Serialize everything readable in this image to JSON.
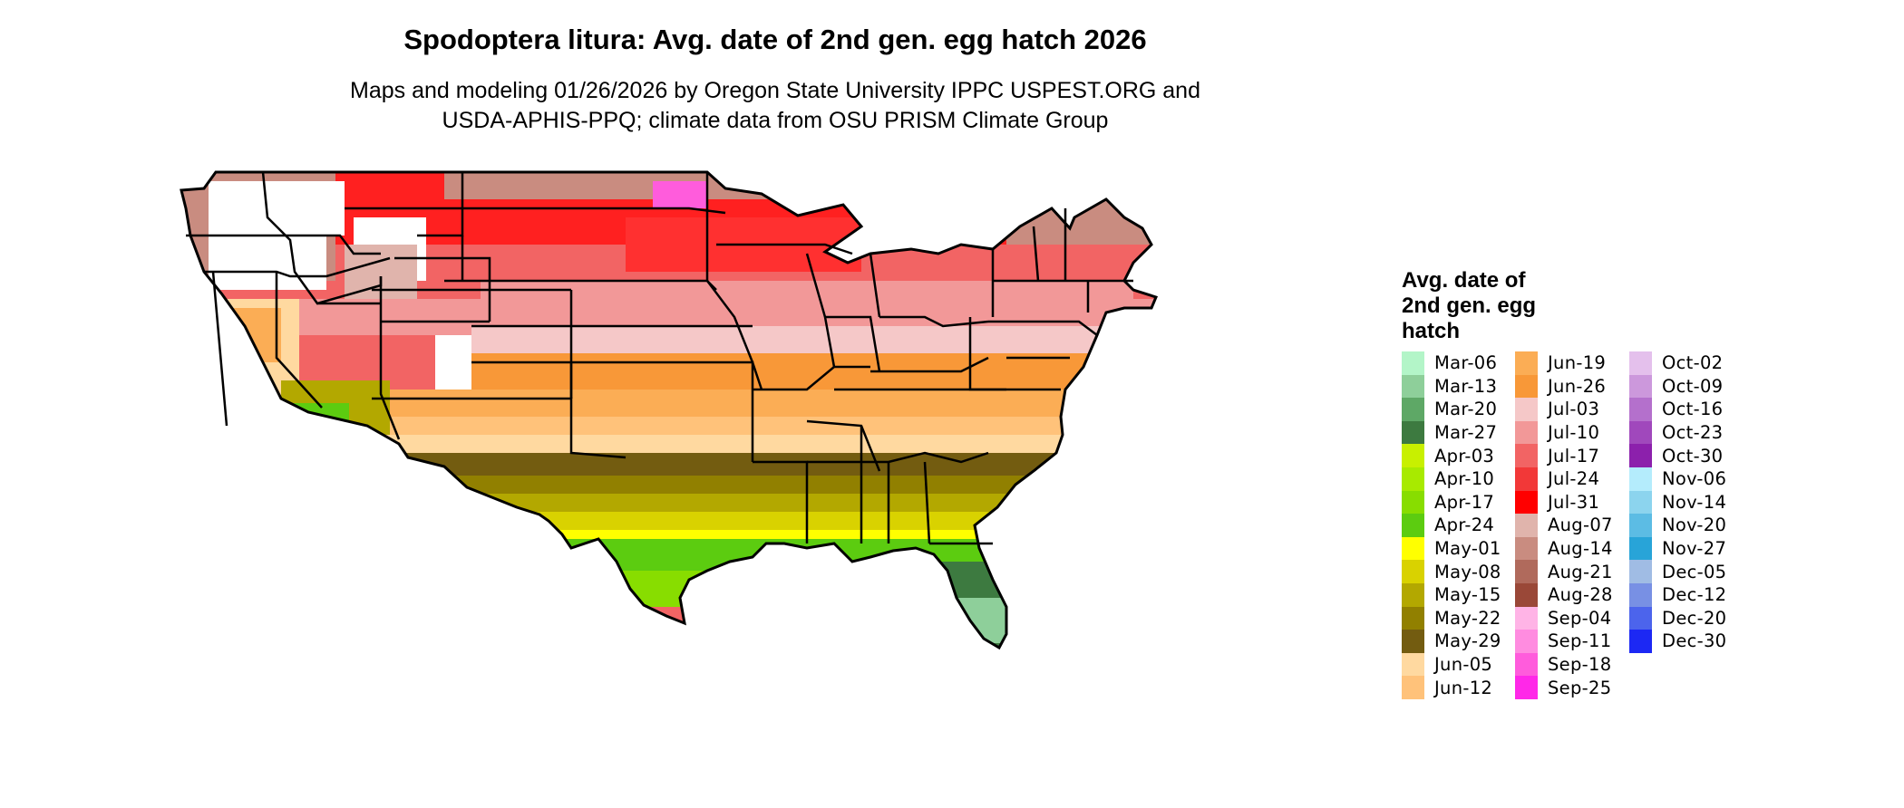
{
  "title": "Spodoptera litura: Avg. date of 2nd gen. egg hatch 2026",
  "subtitle_lines": [
    "Maps and modeling 01/26/2026 by Oregon State University IPPC USPEST.ORG and",
    "USDA-APHIS-PPQ; climate data from OSU PRISM Climate Group"
  ],
  "legend": {
    "title_lines": [
      "Avg. date of",
      "2nd gen. egg",
      "hatch"
    ],
    "columns": [
      [
        {
          "label": "Mar-06",
          "color": "#b3f5c8"
        },
        {
          "label": "Mar-13",
          "color": "#8ecf9a"
        },
        {
          "label": "Mar-20",
          "color": "#5ea866"
        },
        {
          "label": "Mar-27",
          "color": "#3d7a40"
        },
        {
          "label": "Apr-03",
          "color": "#c8f000"
        },
        {
          "label": "Apr-10",
          "color": "#a8ea00"
        },
        {
          "label": "Apr-17",
          "color": "#88dd00"
        },
        {
          "label": "Apr-24",
          "color": "#5ccc10"
        },
        {
          "label": "May-01",
          "color": "#ffff00"
        },
        {
          "label": "May-08",
          "color": "#d9d200"
        },
        {
          "label": "May-15",
          "color": "#b3a800"
        },
        {
          "label": "May-22",
          "color": "#918000"
        },
        {
          "label": "May-29",
          "color": "#735c10"
        },
        {
          "label": "Jun-05",
          "color": "#ffd9a0"
        },
        {
          "label": "Jun-12",
          "color": "#ffc27a"
        }
      ],
      [
        {
          "label": "Jun-19",
          "color": "#fbad55"
        },
        {
          "label": "Jun-26",
          "color": "#f89838"
        },
        {
          "label": "Jul-03",
          "color": "#f5c8c8"
        },
        {
          "label": "Jul-10",
          "color": "#f29898"
        },
        {
          "label": "Jul-17",
          "color": "#f26464"
        },
        {
          "label": "Jul-24",
          "color": "#f23838"
        },
        {
          "label": "Jul-31",
          "color": "#ff0000"
        },
        {
          "label": "Aug-07",
          "color": "#e0b4ac"
        },
        {
          "label": "Aug-14",
          "color": "#c98c80"
        },
        {
          "label": "Aug-21",
          "color": "#b06a5c"
        },
        {
          "label": "Aug-28",
          "color": "#9a4838"
        },
        {
          "label": "Sep-04",
          "color": "#ffb4e6"
        },
        {
          "label": "Sep-11",
          "color": "#ff8ce0"
        },
        {
          "label": "Sep-18",
          "color": "#ff5cdc"
        },
        {
          "label": "Sep-25",
          "color": "#ff28e8"
        }
      ],
      [
        {
          "label": "Oct-02",
          "color": "#e4c0ec"
        },
        {
          "label": "Oct-09",
          "color": "#cc98dc"
        },
        {
          "label": "Oct-16",
          "color": "#b470cc"
        },
        {
          "label": "Oct-23",
          "color": "#a048bc"
        },
        {
          "label": "Oct-30",
          "color": "#8c20ac"
        },
        {
          "label": "Nov-06",
          "color": "#b4ecfc"
        },
        {
          "label": "Nov-14",
          "color": "#8cd4ee"
        },
        {
          "label": "Nov-20",
          "color": "#5cbce4"
        },
        {
          "label": "Nov-27",
          "color": "#28a4d8"
        },
        {
          "label": "Dec-05",
          "color": "#a0bce4"
        },
        {
          "label": "Dec-12",
          "color": "#7890e4"
        },
        {
          "label": "Dec-20",
          "color": "#4c64ec"
        },
        {
          "label": "Dec-30",
          "color": "#1c28f4"
        }
      ]
    ]
  },
  "colors": {
    "state_border": "#000000",
    "no_data": "#ffffff"
  }
}
